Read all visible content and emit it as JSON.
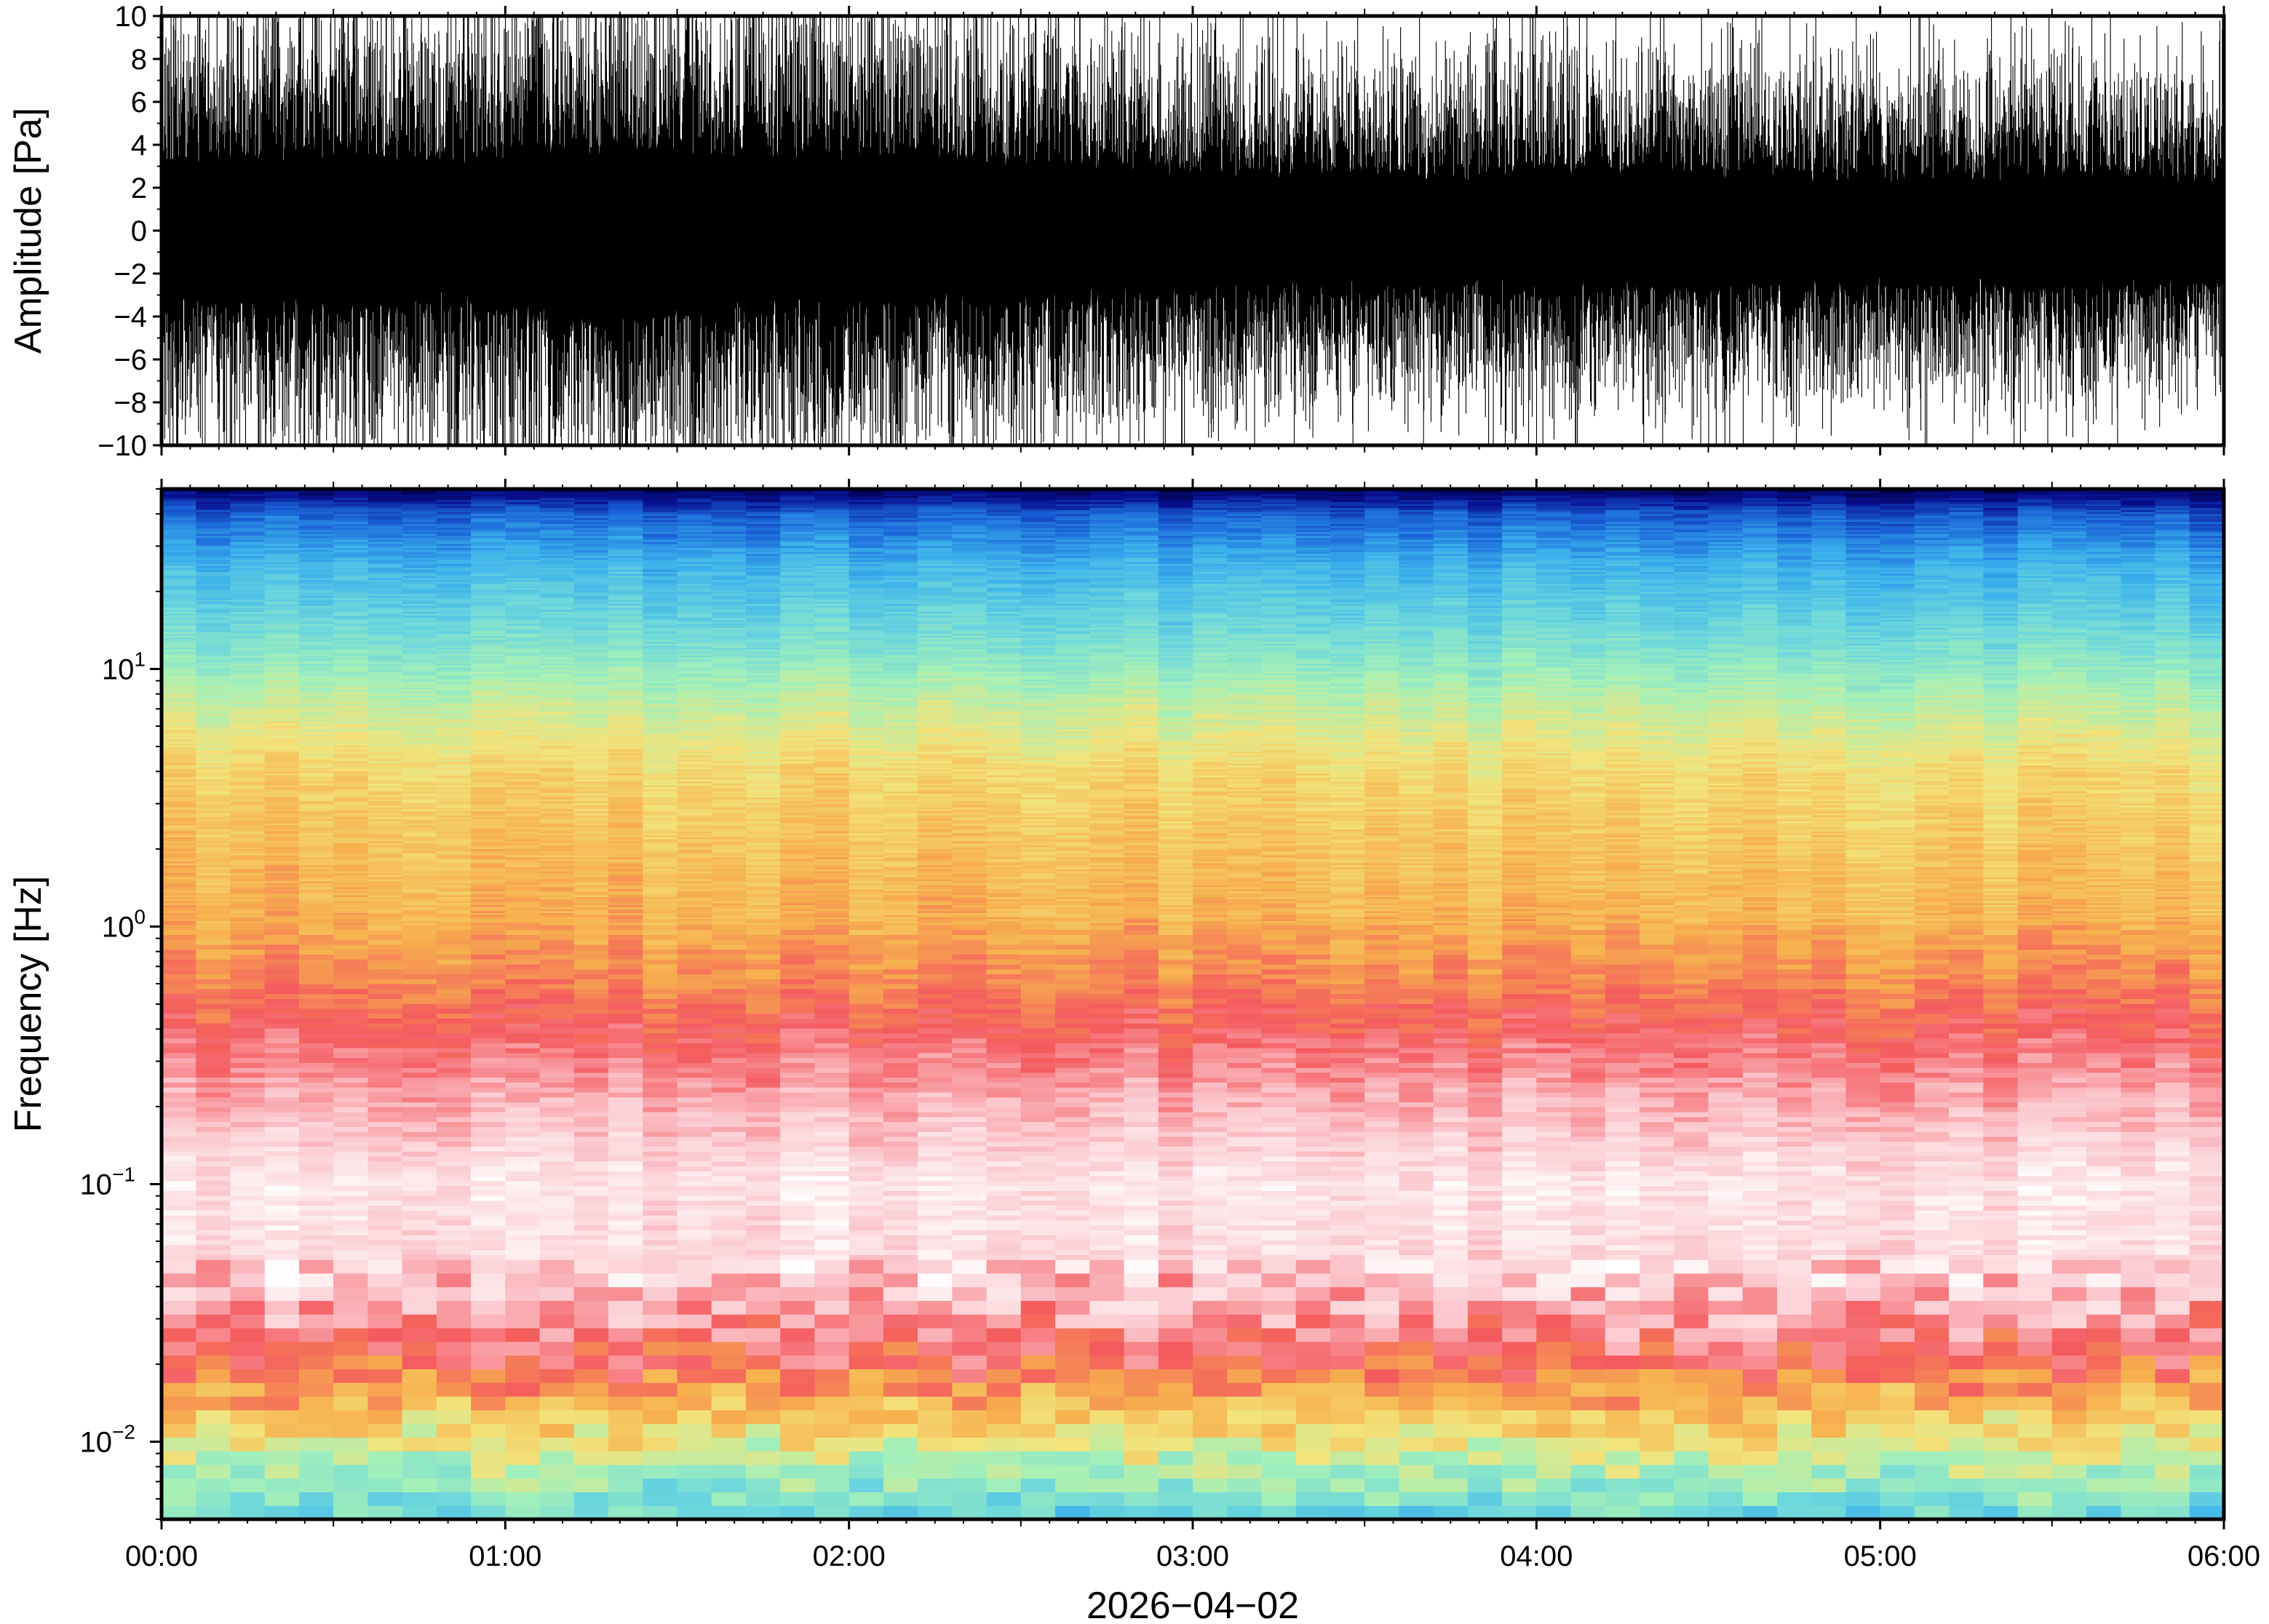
{
  "chart_data": [
    {
      "type": "line",
      "ylabel": "Amplitude [Pa]",
      "ylim": [
        -10,
        10
      ],
      "yticks": [
        10,
        8,
        6,
        4,
        2,
        0,
        -2,
        -4,
        -6,
        -8,
        -10
      ],
      "ytick_labels": [
        "10",
        "8",
        "6",
        "4",
        "2",
        "0",
        "−2",
        "−4",
        "−6",
        "−8",
        "−10"
      ],
      "xlim": [
        "2026-04-02T00:00",
        "2026-04-02T06:00"
      ],
      "series_color": "#000000",
      "series": [
        {
          "values": "dense pressure waveform, approx. ±3 Pa with peaks clipped at ±10 Pa",
          "envelope_pa": [
            [
              0.0,
              7.2
            ],
            [
              0.25,
              8.6
            ],
            [
              0.5,
              9.0
            ],
            [
              0.75,
              8.0
            ],
            [
              1.0,
              8.8
            ],
            [
              1.25,
              9.6
            ],
            [
              1.5,
              9.2
            ],
            [
              1.75,
              8.7
            ],
            [
              2.0,
              9.0
            ],
            [
              2.25,
              8.3
            ],
            [
              2.5,
              7.9
            ],
            [
              2.75,
              7.4
            ],
            [
              3.0,
              7.0
            ],
            [
              3.25,
              6.8
            ],
            [
              3.5,
              6.6
            ],
            [
              3.75,
              6.4
            ],
            [
              4.0,
              6.9
            ],
            [
              4.25,
              6.6
            ],
            [
              4.5,
              6.7
            ],
            [
              4.75,
              6.3
            ],
            [
              5.0,
              6.1
            ],
            [
              5.25,
              6.4
            ],
            [
              5.5,
              6.6
            ],
            [
              5.75,
              6.1
            ],
            [
              6.0,
              5.9
            ]
          ]
        }
      ]
    },
    {
      "type": "heatmap",
      "ylabel": "Frequency [Hz]",
      "yscale": "log",
      "ylim": [
        0.005,
        50
      ],
      "yticks": [
        10,
        1,
        0.1,
        0.01
      ],
      "ytick_labels": [
        {
          "base": "10",
          "exp": "1"
        },
        {
          "base": "10",
          "exp": "0"
        },
        {
          "base": "10",
          "exp": "−1"
        },
        {
          "base": "10",
          "exp": "−2"
        }
      ],
      "xlabel": "2026−04−02",
      "xlim": [
        "2026-04-02T00:00",
        "2026-04-02T06:00"
      ],
      "xticks": [
        "00:00",
        "01:00",
        "02:00",
        "03:00",
        "04:00",
        "05:00",
        "06:00"
      ],
      "colormap": [
        "#ffffff",
        "#fbc6cc",
        "#f45a5e",
        "#f7b04e",
        "#f2e47c",
        "#a4f0b8",
        "#6ed8dc",
        "#3ab0ec",
        "#1a64d8",
        "#081090",
        "#000040"
      ],
      "time_bins": 60,
      "freq_profile_hz_to_level": [
        [
          0.005,
          0.62
        ],
        [
          0.008,
          0.48
        ],
        [
          0.012,
          0.36
        ],
        [
          0.02,
          0.22
        ],
        [
          0.03,
          0.14
        ],
        [
          0.05,
          0.07
        ],
        [
          0.1,
          0.05
        ],
        [
          0.2,
          0.12
        ],
        [
          0.4,
          0.2
        ],
        [
          0.6,
          0.25
        ],
        [
          1.0,
          0.3
        ],
        [
          2.0,
          0.33
        ],
        [
          4.0,
          0.37
        ],
        [
          7.0,
          0.45
        ],
        [
          10.0,
          0.52
        ],
        [
          15.0,
          0.6
        ],
        [
          25.0,
          0.68
        ],
        [
          40.0,
          0.8
        ],
        [
          50.0,
          0.95
        ]
      ]
    }
  ]
}
